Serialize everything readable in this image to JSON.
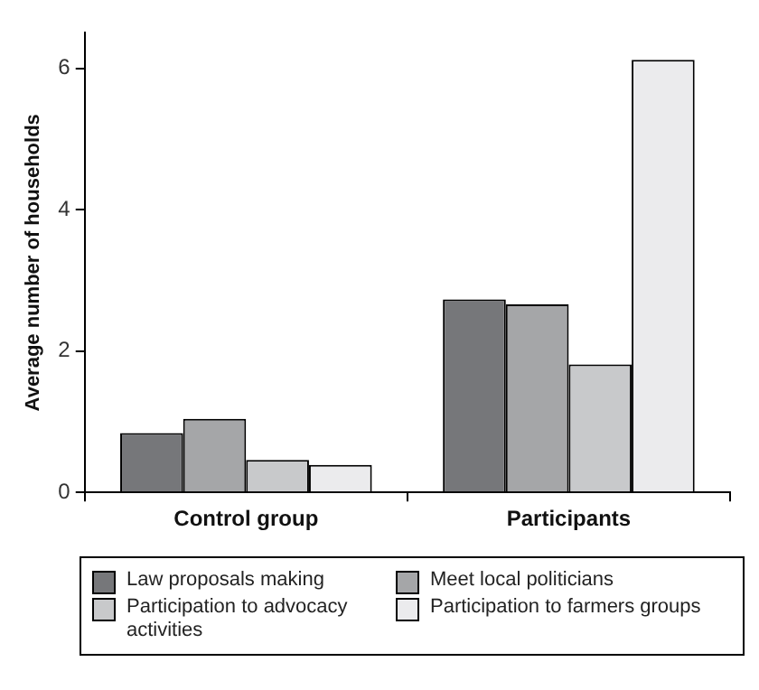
{
  "chart_data": {
    "type": "bar",
    "ylabel": "Average number of households",
    "categories": [
      "Control group",
      "Participants"
    ],
    "series": [
      {
        "name": "Law proposals making",
        "color": "#76777a",
        "values": [
          0.84,
          2.73
        ]
      },
      {
        "name": "Meet local politicians",
        "color": "#a5a6a8",
        "values": [
          1.04,
          2.66
        ]
      },
      {
        "name": "Participation to advocacy activities",
        "color": "#c8c9cb",
        "values": [
          0.46,
          1.81
        ]
      },
      {
        "name": "Participation to farmers groups",
        "color": "#ebebed",
        "values": [
          0.39,
          6.12
        ]
      }
    ],
    "ylim": [
      0,
      6.5
    ],
    "yticks": [
      0,
      2,
      4,
      6
    ],
    "grid": false,
    "legend": "bottom"
  }
}
